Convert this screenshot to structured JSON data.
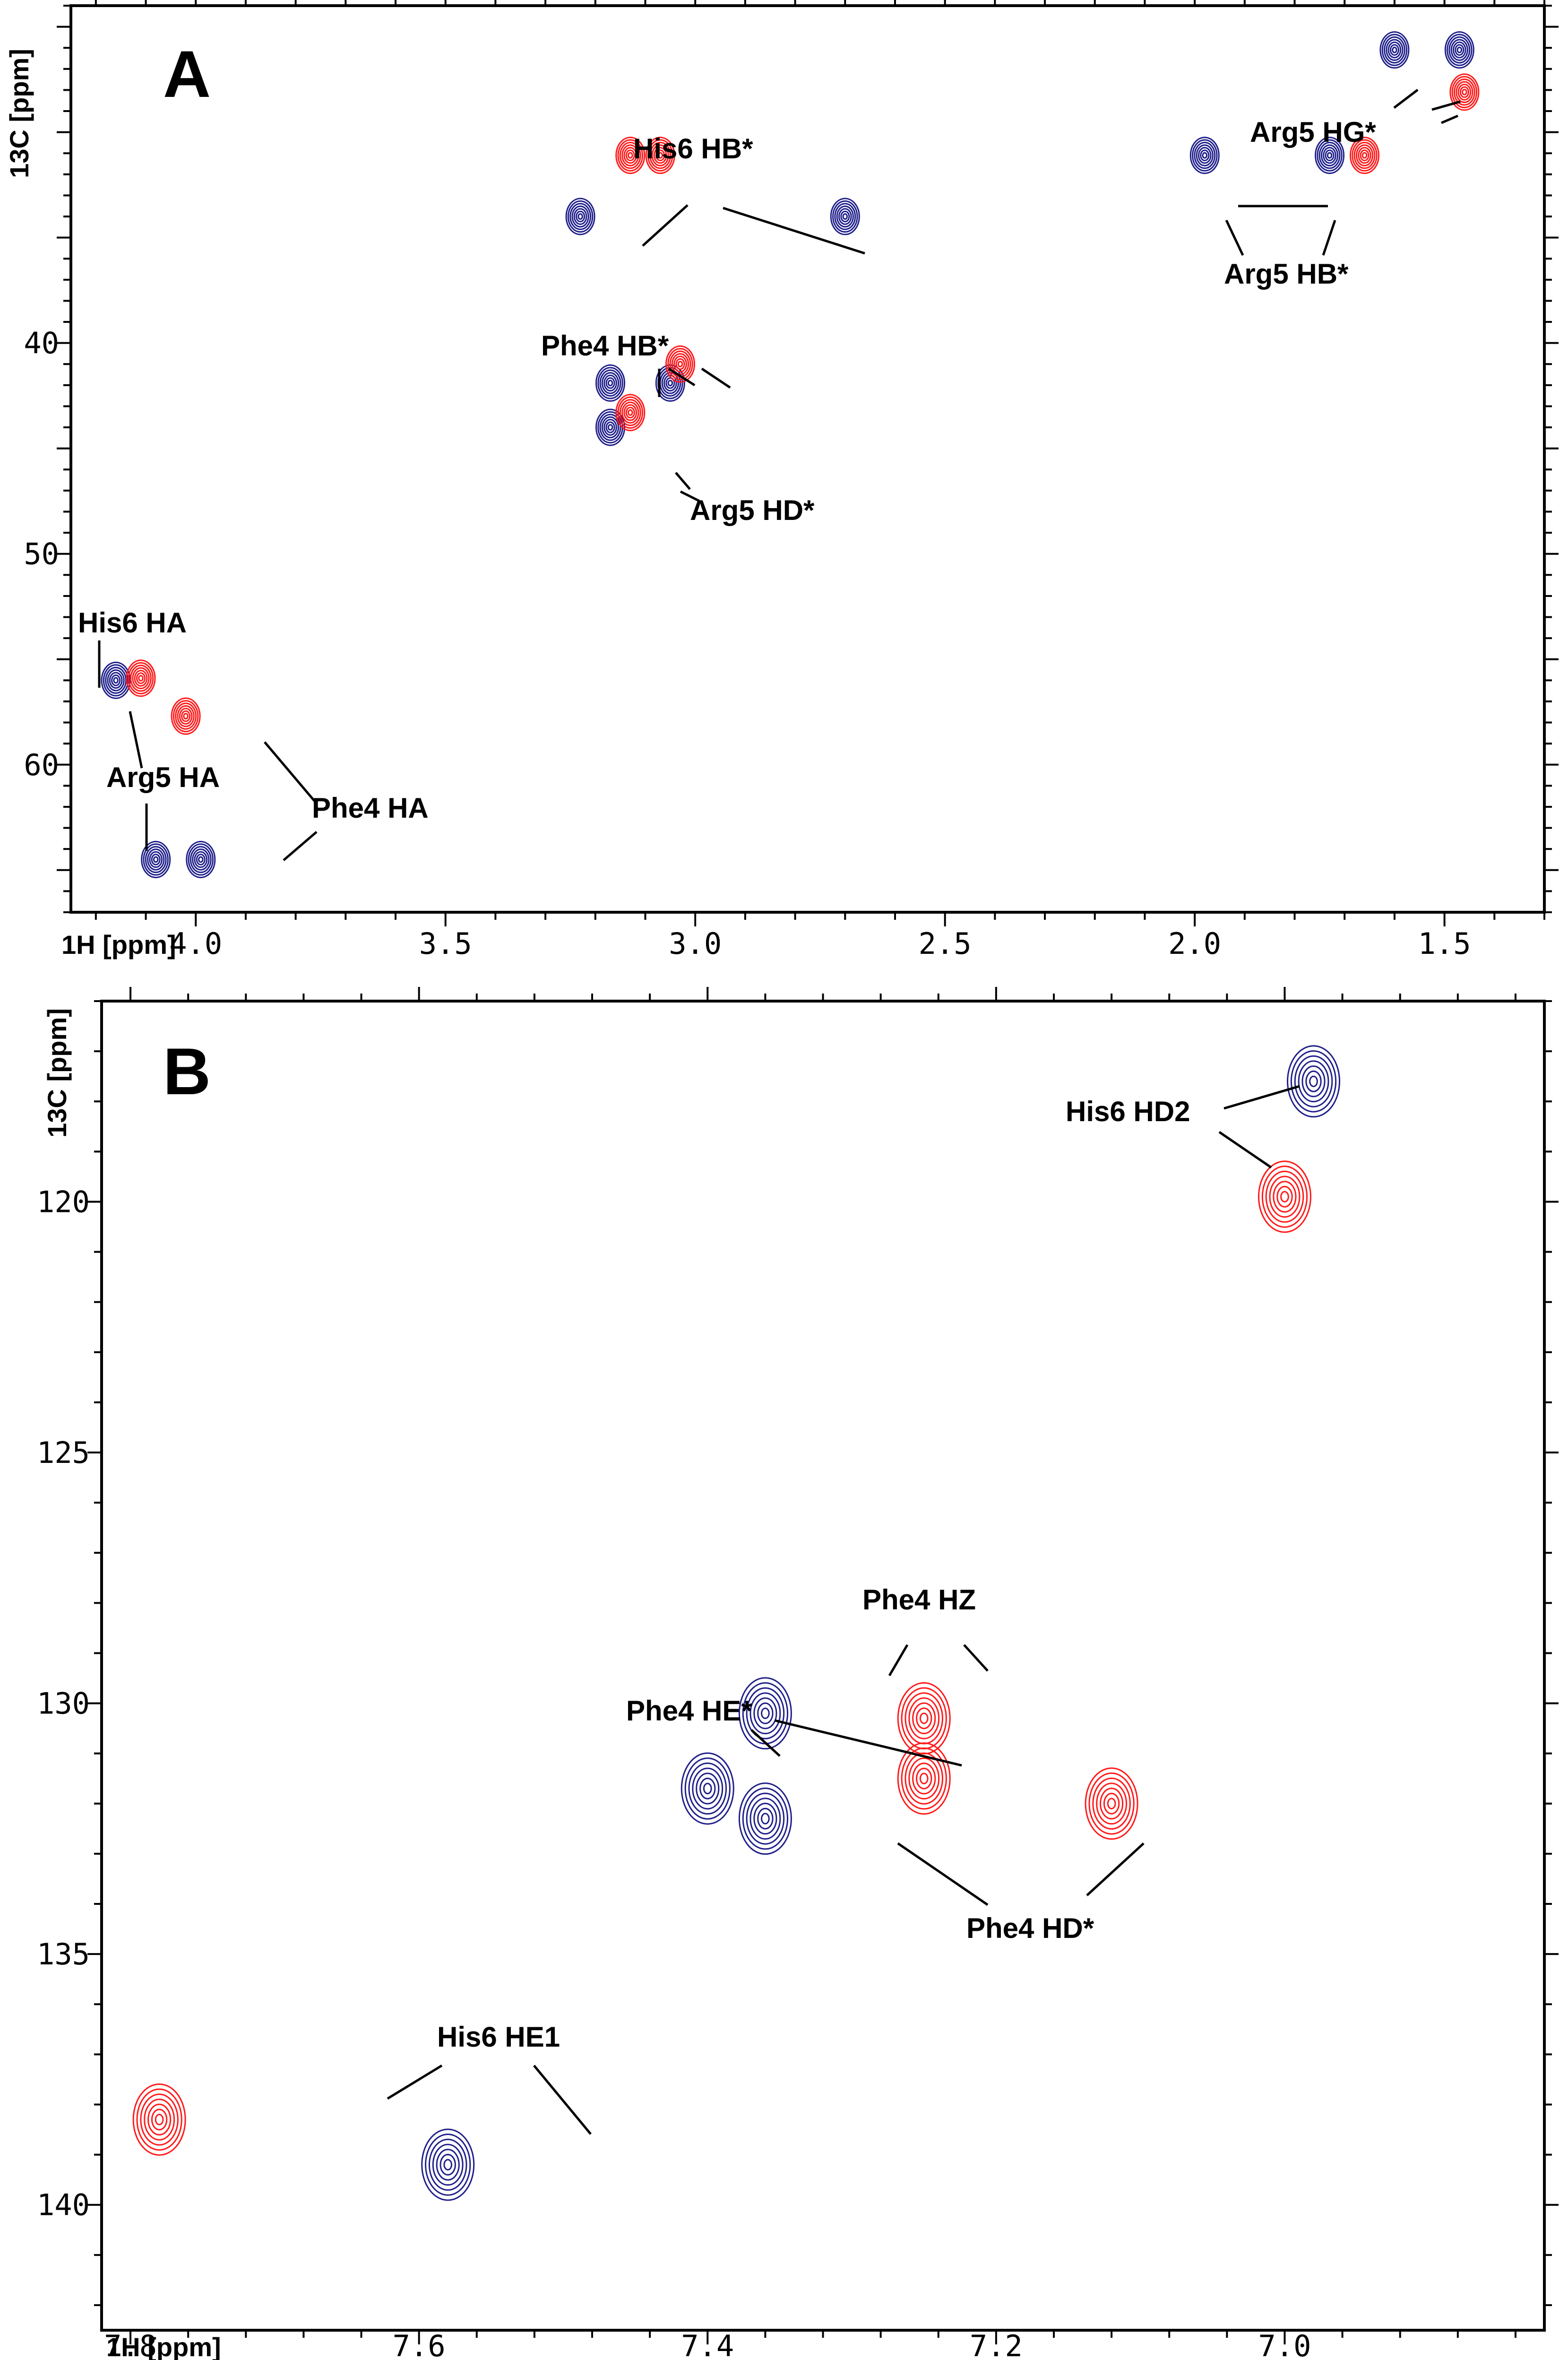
{
  "chart_data": [
    {
      "panel": "A",
      "type": "scatter",
      "title": "",
      "xlabel": "1H [ppm]",
      "ylabel": "13C [ppm]",
      "xlim": [
        4.25,
        1.3
      ],
      "ylim": [
        24.0,
        67.0
      ],
      "x_ticks": [
        4.0,
        3.5,
        3.0,
        2.5,
        2.0,
        1.5
      ],
      "x_tick_labels": [
        "4.0",
        "3.5",
        "3.0",
        "2.5",
        "2.0",
        "1.5"
      ],
      "y_ticks": [
        40,
        50,
        60
      ],
      "y_tick_labels": [
        "40",
        "50",
        "60"
      ],
      "colors": {
        "positive": "#1f1f8a",
        "negative": "#ff1a1a"
      },
      "peaks": [
        {
          "x": 3.23,
          "y": 34.0,
          "sign": "positive"
        },
        {
          "x": 2.7,
          "y": 34.0,
          "sign": "positive"
        },
        {
          "x": 3.13,
          "y": 31.1,
          "sign": "negative"
        },
        {
          "x": 3.07,
          "y": 31.1,
          "sign": "negative"
        },
        {
          "x": 1.6,
          "y": 26.1,
          "sign": "positive"
        },
        {
          "x": 1.47,
          "y": 26.1,
          "sign": "positive"
        },
        {
          "x": 1.46,
          "y": 28.1,
          "sign": "negative"
        },
        {
          "x": 1.98,
          "y": 31.1,
          "sign": "positive"
        },
        {
          "x": 1.73,
          "y": 31.1,
          "sign": "positive"
        },
        {
          "x": 1.66,
          "y": 31.1,
          "sign": "negative"
        },
        {
          "x": 3.17,
          "y": 41.9,
          "sign": "positive"
        },
        {
          "x": 3.05,
          "y": 41.9,
          "sign": "positive"
        },
        {
          "x": 3.03,
          "y": 41.0,
          "sign": "negative"
        },
        {
          "x": 3.17,
          "y": 44.0,
          "sign": "positive"
        },
        {
          "x": 3.13,
          "y": 43.3,
          "sign": "negative"
        },
        {
          "x": 4.16,
          "y": 56.0,
          "sign": "positive"
        },
        {
          "x": 4.11,
          "y": 55.9,
          "sign": "negative"
        },
        {
          "x": 4.02,
          "y": 57.7,
          "sign": "negative"
        },
        {
          "x": 4.08,
          "y": 64.5,
          "sign": "positive"
        },
        {
          "x": 3.99,
          "y": 64.5,
          "sign": "positive"
        }
      ],
      "annotations": [
        "His6 HB*",
        "Arg5 HG*",
        "Arg5 HB*",
        "Phe4 HB*",
        "Arg5 HD*",
        "His6 HA",
        "Arg5 HA",
        "Phe4 HA"
      ]
    },
    {
      "panel": "B",
      "type": "scatter",
      "title": "",
      "xlabel": "1H [ppm]",
      "ylabel": "13C [ppm]",
      "xlim": [
        7.82,
        6.82
      ],
      "ylim": [
        116.0,
        142.5
      ],
      "x_ticks": [
        7.8,
        7.6,
        7.4,
        7.2,
        7.0
      ],
      "x_tick_labels": [
        "7.8",
        "7.6",
        "7.4",
        "7.2",
        "7.0"
      ],
      "y_ticks": [
        120,
        125,
        130,
        135,
        140
      ],
      "y_tick_labels": [
        "120",
        "125",
        "130",
        "135",
        "140"
      ],
      "colors": {
        "positive": "#1f1f8a",
        "negative": "#ff1a1a"
      },
      "peaks": [
        {
          "x": 6.98,
          "y": 117.6,
          "sign": "positive"
        },
        {
          "x": 7.0,
          "y": 119.9,
          "sign": "negative"
        },
        {
          "x": 7.36,
          "y": 130.2,
          "sign": "positive"
        },
        {
          "x": 7.25,
          "y": 130.3,
          "sign": "negative"
        },
        {
          "x": 7.25,
          "y": 131.5,
          "sign": "negative"
        },
        {
          "x": 7.4,
          "y": 131.7,
          "sign": "positive"
        },
        {
          "x": 7.36,
          "y": 132.3,
          "sign": "positive"
        },
        {
          "x": 7.12,
          "y": 132.0,
          "sign": "negative"
        },
        {
          "x": 7.78,
          "y": 138.3,
          "sign": "negative"
        },
        {
          "x": 7.58,
          "y": 139.2,
          "sign": "positive"
        }
      ],
      "annotations": [
        "His6 HD2",
        "Phe4 HZ",
        "Phe4 HE*",
        "Phe4 HD*",
        "His6 HE1"
      ]
    }
  ]
}
